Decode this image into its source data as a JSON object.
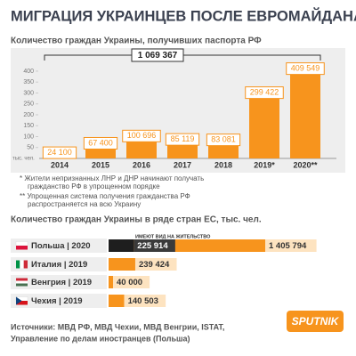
{
  "header": {
    "title": "МИГРАЦИЯ УКРАИНЦЕВ ПОСЛЕ ЕВРОМАЙДАНА"
  },
  "chart_data": [
    {
      "type": "bar",
      "title": "Количество граждан Украины, получивших паспорта РФ",
      "annotation": "1 069 367",
      "ylabel": "тыс. чел.",
      "categories": [
        "2014",
        "2015",
        "2016",
        "2017",
        "2018",
        "2019*",
        "2020**"
      ],
      "values": [
        24.1,
        67.4,
        100.696,
        85.119,
        83.081,
        299.422,
        409.549
      ],
      "value_labels": [
        "24 100",
        "67 400",
        "100 696",
        "85 119",
        "83 081",
        "299 422",
        "409 549"
      ],
      "color": "#f7941d",
      "ylim": [
        0,
        410
      ],
      "yticks": [
        50,
        100,
        150,
        200,
        250,
        300,
        350,
        400
      ],
      "notes": [
        "* Жители непризнанных ЛНР и ДНР начинают получать гражданство РФ в упрощенном порядке",
        "** Упрощенная система получения гражданства РФ распространяется на всю Украину"
      ]
    },
    {
      "type": "hbar",
      "title": "Количество граждан Украины в ряде стран ЕС, тыс. чел.",
      "categories": [
        "Польша | 2020",
        "Италия | 2019",
        "Венгрия | 2019",
        "Чехия | 2019"
      ],
      "series": [
        {
          "color": "#f7941d",
          "values": [
            1405794,
            239424,
            40000,
            140503
          ],
          "value_labels": [
            "1 405 794",
            "239 424",
            "40 000",
            "140 503"
          ]
        },
        {
          "name": "ИМЕЮТ ВИД НА ЖИТЕЛЬСТВО",
          "color": "#1e1e1e",
          "values": [
            225914,
            null,
            null,
            null
          ],
          "value_labels": [
            "225 914",
            null,
            null,
            null
          ]
        }
      ]
    }
  ],
  "footer": {
    "sources": [
      "Источники: МВД РФ, МВД Чехии, МВД Венгрии, ISTAT,",
      "Управление по делам иностранцев (Польша)"
    ],
    "logo": "SPUTNIK"
  }
}
